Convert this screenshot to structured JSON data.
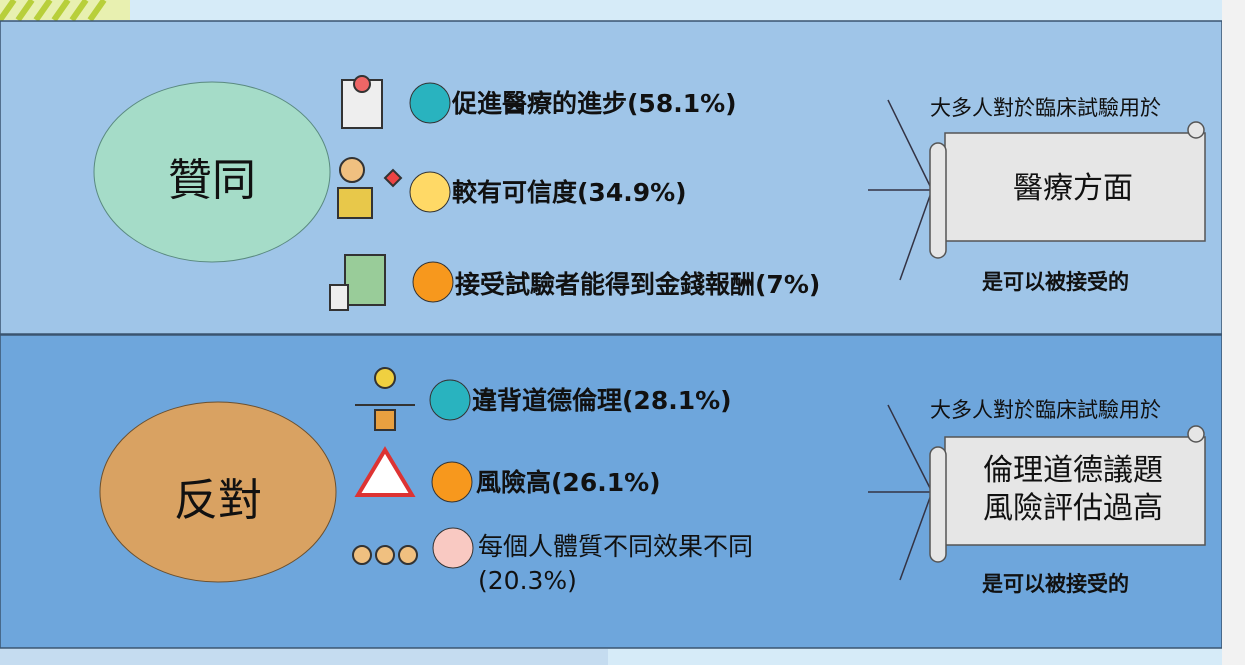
{
  "sections": [
    {
      "label": "贊同",
      "items": [
        "促進醫療的進步(58.1%)",
        "較有可信度(34.9%)",
        "接受試驗者能得到金錢報酬(7%)"
      ],
      "note": "大多人對於臨床試驗用於",
      "scroll": [
        "醫療方面"
      ],
      "footer": "是可以被接受的"
    },
    {
      "label": "反對",
      "items": [
        "違背道德倫理(28.1%)",
        "風險高(26.1%)",
        "每個人體質不同效果不同(20.3%)"
      ],
      "note": "大多人對於臨床試驗用於",
      "scroll": [
        "倫理道德議題",
        "風險評估過高"
      ],
      "footer": "是可以被接受的"
    }
  ]
}
